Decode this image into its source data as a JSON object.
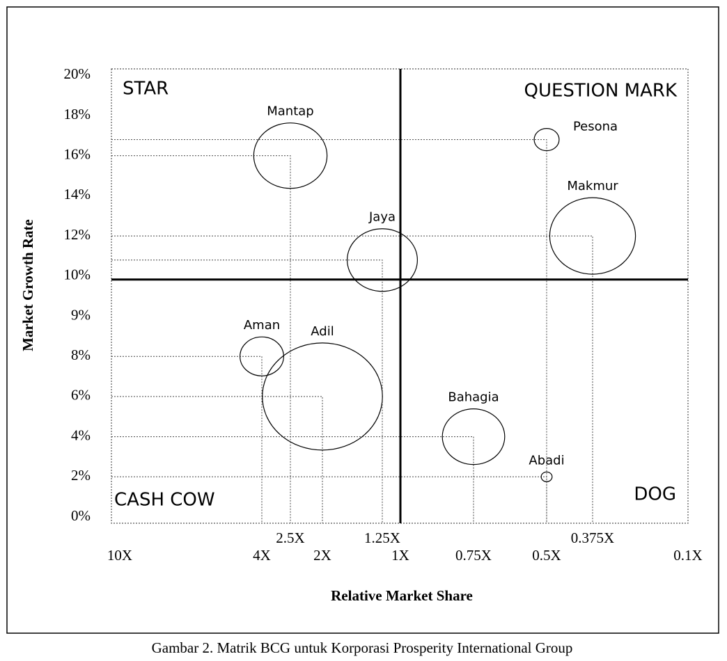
{
  "chart_data": {
    "type": "bubble",
    "x_label": "Relative Market Share",
    "y_label": "Market Growth Rate",
    "caption": "Gambar 2.  Matrik BCG untuk Korporasi Prosperity International Group",
    "quadrants": {
      "top_left": "STAR",
      "top_right": "QUESTION MARK",
      "bottom_left": "CASH COW",
      "bottom_right": "DOG"
    },
    "labels": [
      "Mantap",
      "Pesona",
      "Makmur",
      "Jaya",
      "Aman",
      "Adil",
      "Bahagia",
      "Abadi"
    ],
    "x": [
      2.5,
      0.5,
      0.375,
      1.25,
      4,
      2,
      0.75,
      0.5
    ],
    "values": [
      16,
      16.8,
      12,
      10.8,
      8,
      6,
      4,
      2
    ],
    "sizes": [
      47,
      16,
      55,
      45,
      28,
      77,
      40,
      7
    ],
    "x_divider": 1,
    "y_divider": 10,
    "xticks": [
      {
        "value": 10,
        "label": "10X"
      },
      {
        "value": 4,
        "label": "4X"
      },
      {
        "value": 2.5,
        "label": "2.5X"
      },
      {
        "value": 2,
        "label": "2X"
      },
      {
        "value": 1.25,
        "label": "1.25X"
      },
      {
        "value": 1,
        "label": "1X"
      },
      {
        "value": 0.75,
        "label": "0.75X"
      },
      {
        "value": 0.5,
        "label": "0.5X"
      },
      {
        "value": 0.375,
        "label": "0.375X"
      },
      {
        "value": 0.1,
        "label": "0.1X"
      }
    ],
    "yticks": [
      {
        "value": 0,
        "label": "0%"
      },
      {
        "value": 2,
        "label": "2%"
      },
      {
        "value": 4,
        "label": "4%"
      },
      {
        "value": 6,
        "label": "6%"
      },
      {
        "value": 8,
        "label": "8%"
      },
      {
        "value": 9,
        "label": "9%"
      },
      {
        "value": 10,
        "label": "10%"
      },
      {
        "value": 12,
        "label": "12%"
      },
      {
        "value": 14,
        "label": "14%"
      },
      {
        "value": 16,
        "label": "16%"
      },
      {
        "value": 18,
        "label": "18%"
      },
      {
        "value": 20,
        "label": "20%"
      }
    ]
  }
}
